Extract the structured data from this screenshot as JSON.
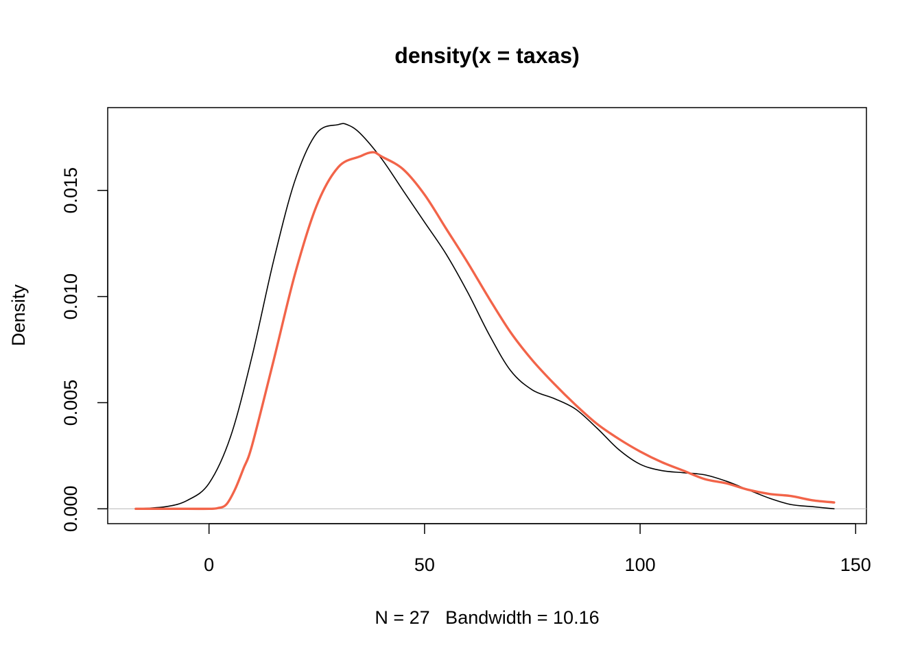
{
  "chart_data": {
    "type": "line",
    "title": "density(x = taxas)",
    "xlabel": "N = 27   Bandwidth = 10.16",
    "ylabel": "Density",
    "xlim": [
      -23.5,
      152.5
    ],
    "ylim": [
      -0.0007,
      0.0189
    ],
    "x_ticks": [
      0,
      50,
      100,
      150
    ],
    "y_ticks": [
      0.0,
      0.005,
      0.01,
      0.015
    ],
    "y_tick_labels": [
      "0.000",
      "0.005",
      "0.010",
      "0.015"
    ],
    "baseline": 0,
    "grid": false,
    "legend": "none",
    "series": [
      {
        "color": "#000000",
        "x": [
          -17,
          -10,
          -5,
          0,
          5,
          10,
          15,
          20,
          25,
          30,
          32,
          35,
          40,
          45,
          50,
          55,
          60,
          65,
          70,
          75,
          80,
          85,
          90,
          95,
          100,
          105,
          110,
          115,
          120,
          125,
          130,
          135,
          140,
          145
        ],
        "values": [
          0.0,
          0.0001,
          0.0004,
          0.0012,
          0.0034,
          0.0072,
          0.0117,
          0.0155,
          0.0177,
          0.0181,
          0.0181,
          0.0177,
          0.0165,
          0.015,
          0.0135,
          0.012,
          0.0102,
          0.0082,
          0.0065,
          0.0056,
          0.0052,
          0.0047,
          0.0038,
          0.0028,
          0.0021,
          0.0018,
          0.0017,
          0.0016,
          0.0013,
          0.0009,
          0.0005,
          0.0002,
          0.0001,
          0.0
        ]
      },
      {
        "color": "#f26449",
        "x": [
          -17,
          -5,
          0,
          2,
          4,
          6,
          8,
          10,
          15,
          20,
          25,
          30,
          35,
          38,
          40,
          45,
          50,
          55,
          60,
          65,
          70,
          75,
          80,
          85,
          90,
          95,
          100,
          105,
          110,
          115,
          120,
          125,
          130,
          135,
          140,
          145
        ],
        "values": [
          0.0,
          0.0,
          0.0,
          3e-05,
          0.0002,
          0.0009,
          0.0019,
          0.003,
          0.007,
          0.0111,
          0.0143,
          0.0161,
          0.0166,
          0.0168,
          0.0166,
          0.016,
          0.0148,
          0.0132,
          0.0116,
          0.0099,
          0.0083,
          0.007,
          0.0059,
          0.0049,
          0.004,
          0.0033,
          0.0027,
          0.0022,
          0.0018,
          0.0014,
          0.0012,
          0.0009,
          0.0007,
          0.0006,
          0.0004,
          0.0003
        ]
      }
    ]
  }
}
